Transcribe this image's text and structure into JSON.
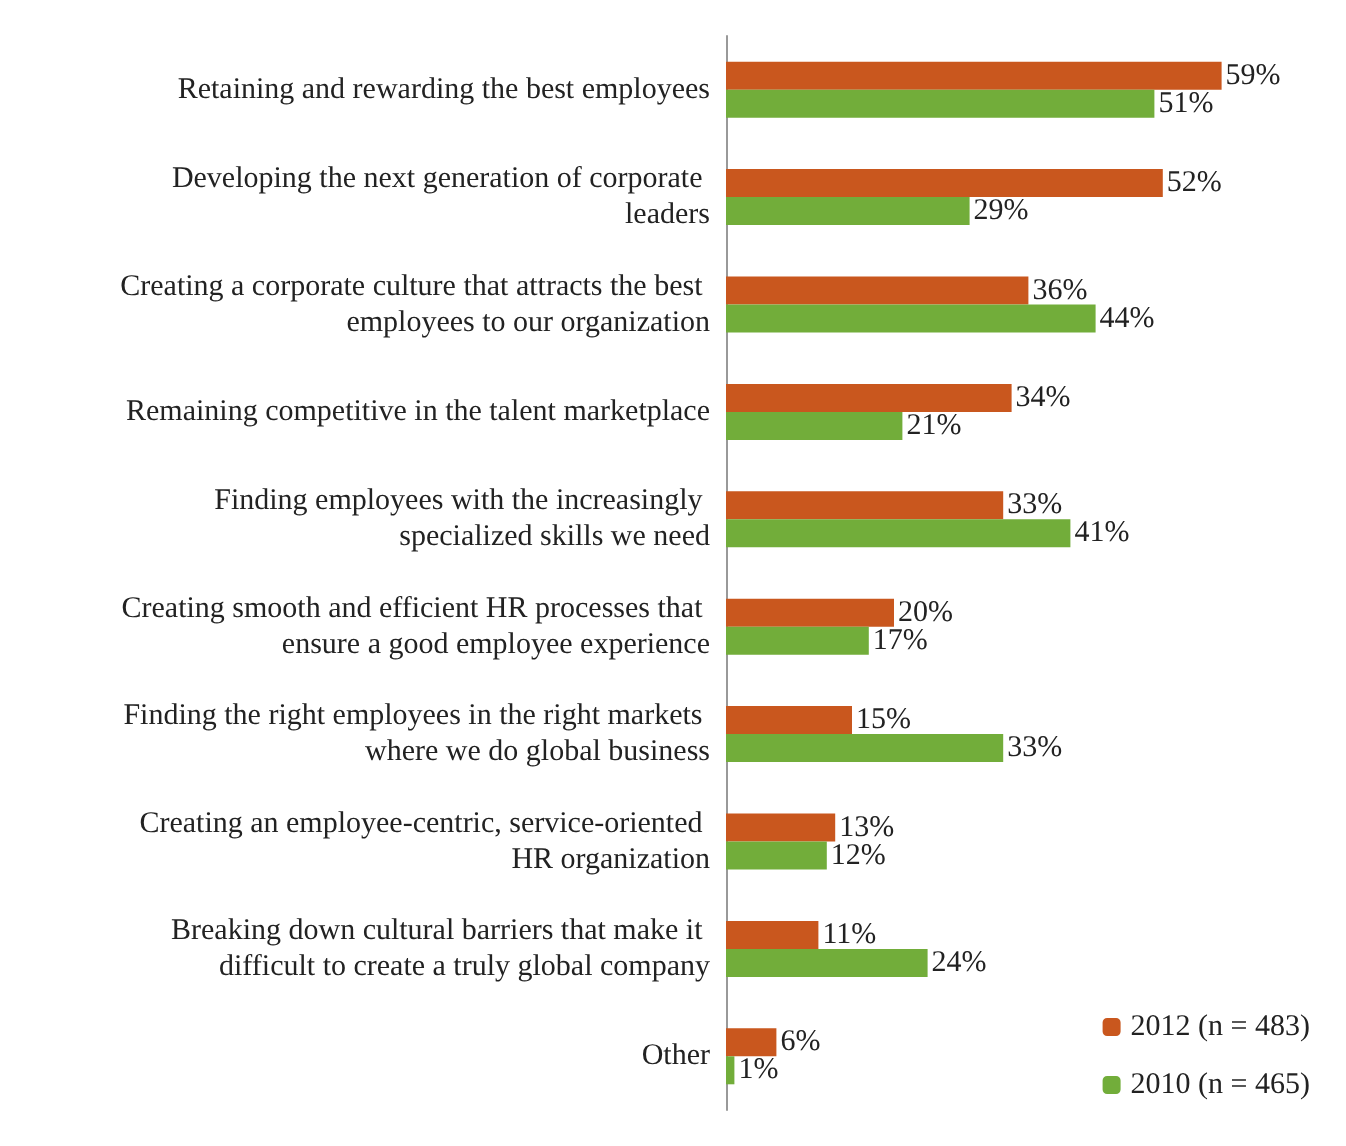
{
  "chart_data": {
    "type": "bar",
    "orientation": "horizontal",
    "tick_labels": "y",
    "legend": "bottom right",
    "categories": [
      "Retaining and rewarding the best employees",
      "Developing the next generation of corporate leaders",
      "Creating a corporate culture that attracts the best employees to our organization",
      "Remaining competitive in the talent marketplace",
      "Finding employees with the increasingly specialized skills we need",
      "Creating smooth and efficient HR processes that ensure a good employee experience",
      "Finding the right employees in the right markets where we do global business",
      "Creating an employee-centric, service-oriented HR organization",
      "Breaking down cultural barriers that make it difficult to create a truly global company",
      "Other"
    ],
    "series": [
      {
        "name": "2012 (n = 483)",
        "color": "#c9571e",
        "values": [
          59,
          52,
          36,
          34,
          33,
          20,
          15,
          13,
          11,
          6
        ],
        "value_labels": [
          "59%",
          "52%",
          "36%",
          "34%",
          "33%",
          "20%",
          "15%",
          "13%",
          "11%",
          "6%"
        ]
      },
      {
        "name": "2010 (n = 465)",
        "color": "#72ad3a",
        "values": [
          51,
          29,
          44,
          21,
          41,
          17,
          33,
          12,
          24,
          1
        ],
        "value_labels": [
          "51%",
          "29%",
          "44%",
          "21%",
          "41%",
          "17%",
          "33%",
          "12%",
          "24%",
          "1%"
        ]
      }
    ]
  }
}
